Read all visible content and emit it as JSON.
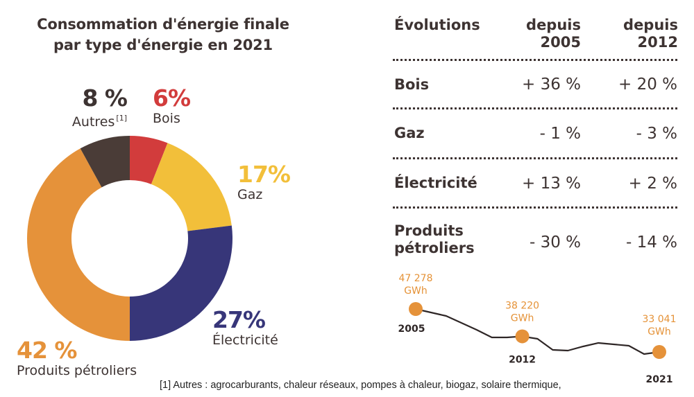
{
  "title": {
    "line1": "Consommation d'énergie finale",
    "line2": "par type d'énergie en 2021"
  },
  "colors": {
    "autres": "#4a3c37",
    "bois": "#d23c3c",
    "gaz": "#f2bf3a",
    "electricite": "#373679",
    "produits_petroliers": "#e5923a",
    "text": "#3d3332",
    "line": "#2e2626",
    "dot": "#e5923a"
  },
  "chart_data": [
    {
      "type": "pie",
      "variant": "donut",
      "title": "Consommation d'énergie finale par type d'énergie en 2021",
      "start": "top",
      "direction": "clockwise",
      "slices": [
        {
          "key": "bois",
          "label": "Bois",
          "value": 6,
          "value_label": "6%",
          "color": "#d23c3c"
        },
        {
          "key": "gaz",
          "label": "Gaz",
          "value": 17,
          "value_label": "17%",
          "color": "#f2bf3a"
        },
        {
          "key": "electricite",
          "label": "Électricité",
          "value": 27,
          "value_label": "27%",
          "color": "#373679"
        },
        {
          "key": "produits_petroliers",
          "label": "Produits pétroliers",
          "value": 42,
          "value_label": "42 %",
          "color": "#e5923a"
        },
        {
          "key": "autres",
          "label": "Autres",
          "footnote_ref": "[1]",
          "value": 8,
          "value_label": "8 %",
          "color": "#4a3c37"
        }
      ]
    },
    {
      "type": "table",
      "title": "Évolutions",
      "columns": [
        "Évolutions",
        "depuis 2005",
        "depuis 2012"
      ],
      "column_headers": [
        {
          "line1": "Évolutions",
          "line2": ""
        },
        {
          "line1": "depuis",
          "line2": "2005"
        },
        {
          "line1": "depuis",
          "line2": "2012"
        }
      ],
      "rows": [
        {
          "label": "Bois",
          "label_lines": [
            "Bois"
          ],
          "since_2005": "+ 36 %",
          "since_2012": "+ 20 %"
        },
        {
          "label": "Gaz",
          "label_lines": [
            "Gaz"
          ],
          "since_2005": "- 1 %",
          "since_2012": "- 3 %"
        },
        {
          "label": "Électricité",
          "label_lines": [
            "Électricité"
          ],
          "since_2005": "+ 13 %",
          "since_2012": "+ 2 %"
        },
        {
          "label": "Produits pétroliers",
          "label_lines": [
            "Produits",
            "pétroliers"
          ],
          "since_2005": "- 30 %",
          "since_2012": "- 14 %"
        }
      ]
    },
    {
      "type": "line",
      "title": "",
      "xlabel": "",
      "ylabel": "GWh",
      "unit": "GWh",
      "x": [
        2005,
        2006,
        2007,
        2008,
        2009,
        2010,
        2011,
        2012,
        2013,
        2014,
        2015,
        2016,
        2017,
        2018,
        2019,
        2020,
        2021
      ],
      "y": [
        47278,
        46130,
        44980,
        42690,
        40390,
        37860,
        37860,
        38220,
        37400,
        33730,
        33500,
        34880,
        36030,
        35570,
        35110,
        32350,
        33041
      ],
      "ylim": [
        32000,
        48000
      ],
      "grid": false,
      "highlighted": [
        {
          "x": 2005,
          "y": 47278,
          "value_label": "47 278",
          "unit_label": "GWh",
          "year_label": "2005"
        },
        {
          "x": 2012,
          "y": 38220,
          "value_label": "38 220",
          "unit_label": "GWh",
          "year_label": "2012"
        },
        {
          "x": 2021,
          "y": 33041,
          "value_label": "33 041",
          "unit_label": "GWh",
          "year_label": "2021"
        }
      ]
    }
  ],
  "footnote": "[1] Autres : agrocarburants, chaleur réseaux, pompes à chaleur, biogaz, solaire thermique,"
}
